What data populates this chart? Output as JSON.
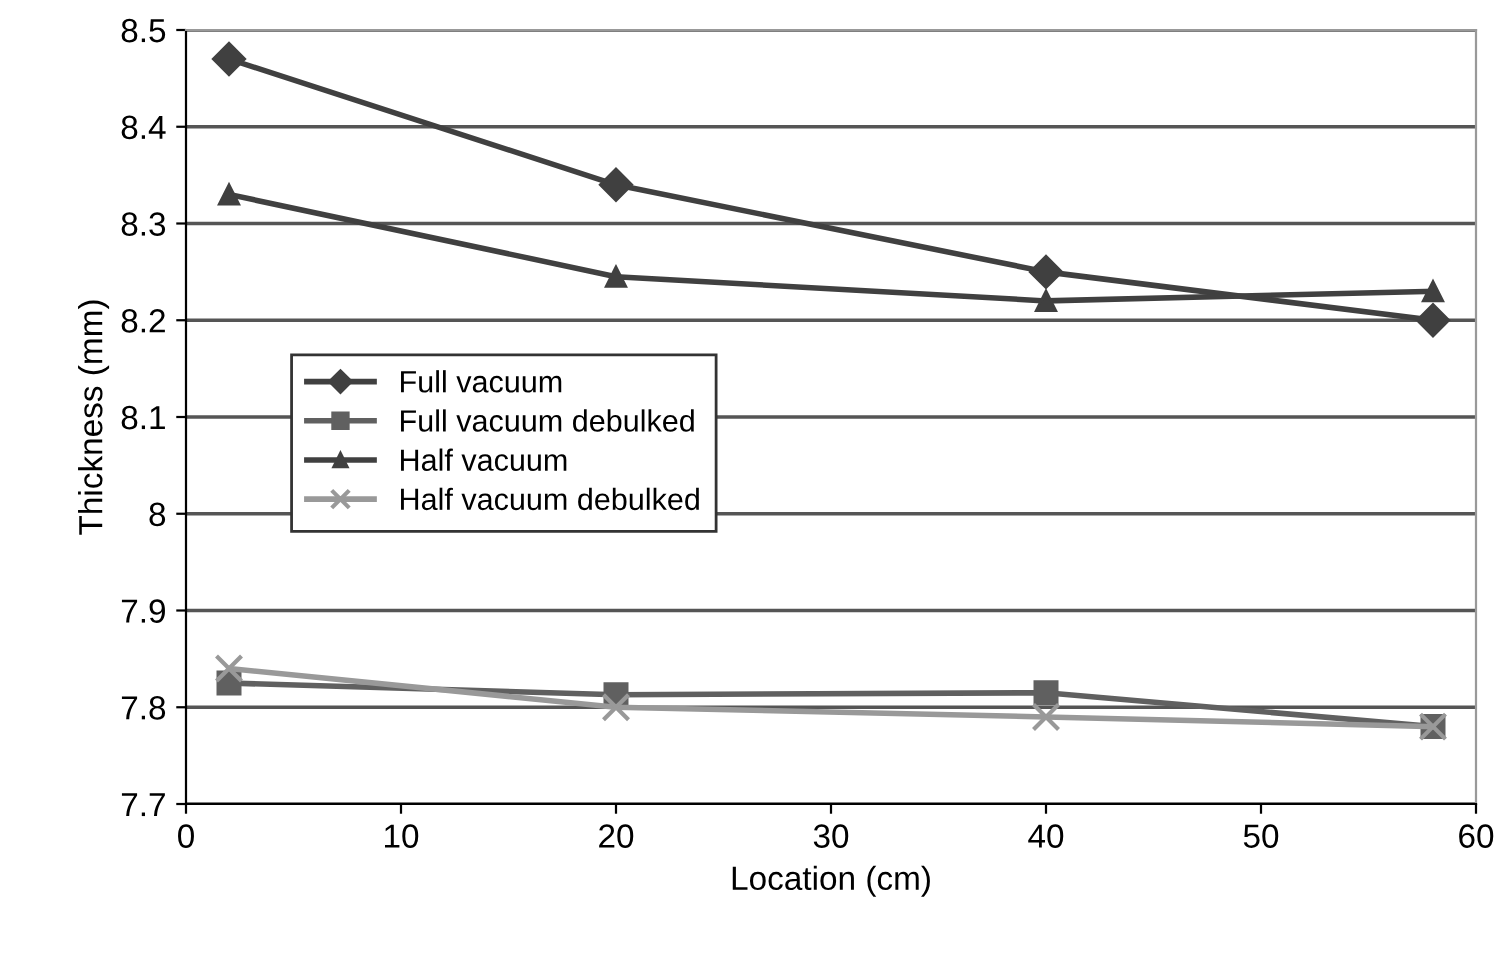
{
  "chart_data": {
    "type": "line",
    "xlabel": "Location (cm)",
    "ylabel": "Thickness (mm)",
    "x": [
      2,
      20,
      40,
      58
    ],
    "series": [
      {
        "name": "Full vacuum",
        "color": "#404040",
        "marker": "diamond",
        "values": [
          8.47,
          8.34,
          8.25,
          8.2
        ]
      },
      {
        "name": "Full vacuum debulked",
        "color": "#606060",
        "marker": "square",
        "values": [
          7.825,
          7.813,
          7.815,
          7.78
        ]
      },
      {
        "name": "Half vacuum",
        "color": "#404040",
        "marker": "triangle",
        "values": [
          8.33,
          8.245,
          8.22,
          8.23
        ]
      },
      {
        "name": "Half vacuum debulked",
        "color": "#999999",
        "marker": "cross",
        "values": [
          7.84,
          7.8,
          7.79,
          7.78
        ]
      }
    ],
    "xlim": [
      0,
      60
    ],
    "xticks": [
      0,
      10,
      20,
      30,
      40,
      50,
      60
    ],
    "ylim": [
      7.7,
      8.5
    ],
    "yticks": [
      7.7,
      7.8,
      7.9,
      8,
      8.1,
      8.2,
      8.3,
      8.4,
      8.5
    ],
    "grid": "y",
    "legend": "left"
  }
}
